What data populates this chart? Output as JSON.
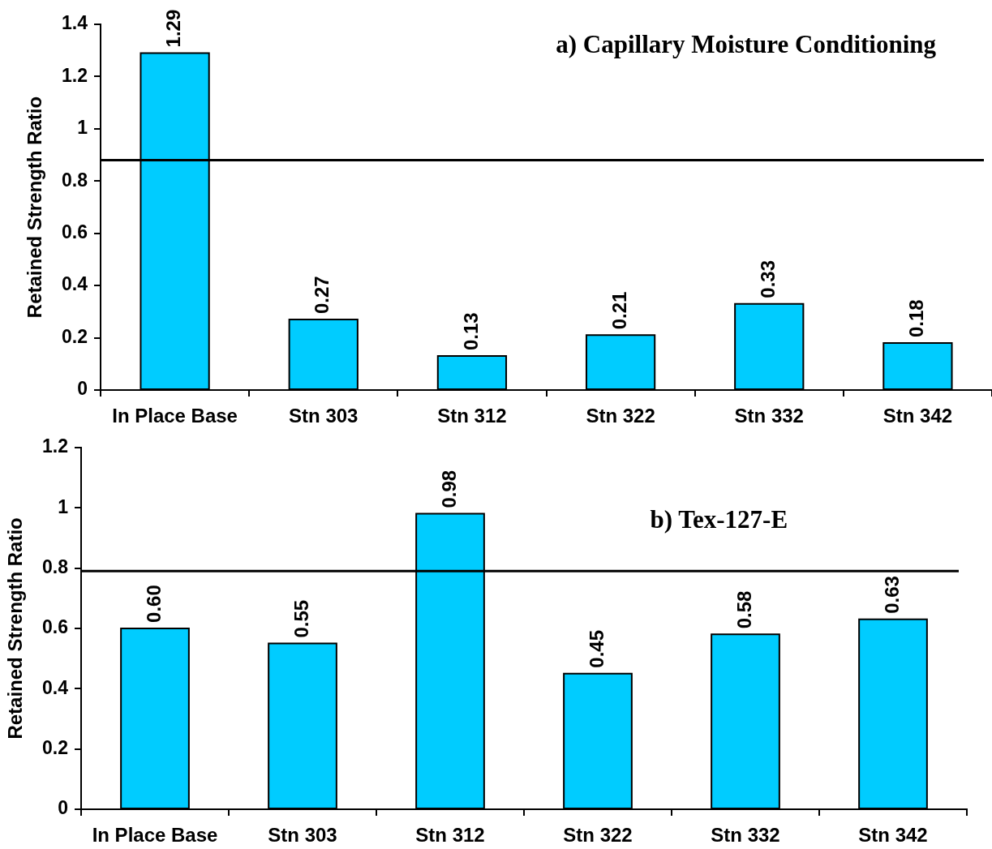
{
  "chart_data": [
    {
      "type": "bar",
      "title": "a) Capillary Moisture Conditioning",
      "ylabel": "Retained Strength Ratio",
      "categories": [
        "In Place Base",
        "Stn 303",
        "Stn 312",
        "Stn 322",
        "Stn 332",
        "Stn 342"
      ],
      "values": [
        1.29,
        0.27,
        0.13,
        0.21,
        0.33,
        0.18
      ],
      "color": "#00ccff",
      "ylim": [
        0,
        1.4
      ],
      "yticks": [
        0,
        0.2,
        0.4,
        0.6,
        0.8,
        1,
        1.2,
        1.4
      ],
      "data_labels": true,
      "ref_lines": [
        {
          "axis": "y",
          "value": 0.88,
          "color": "#000000"
        }
      ]
    },
    {
      "type": "bar",
      "title": "b) Tex-127-E",
      "ylabel": "Retained Strength Ratio",
      "categories": [
        "In Place Base",
        "Stn 303",
        "Stn 312",
        "Stn 322",
        "Stn 332",
        "Stn 342"
      ],
      "values": [
        0.6,
        0.55,
        0.98,
        0.45,
        0.58,
        0.63
      ],
      "value_labels": [
        "0.60",
        "0.55",
        "0.98",
        "0.45",
        "0.58",
        "0.63"
      ],
      "color": "#00ccff",
      "ylim": [
        0,
        1.2
      ],
      "yticks": [
        0,
        0.2,
        0.4,
        0.6,
        0.8,
        1,
        1.2
      ],
      "ref_lines": [
        {
          "axis": "y",
          "value": 0.79,
          "color": "#000000"
        }
      ]
    }
  ]
}
